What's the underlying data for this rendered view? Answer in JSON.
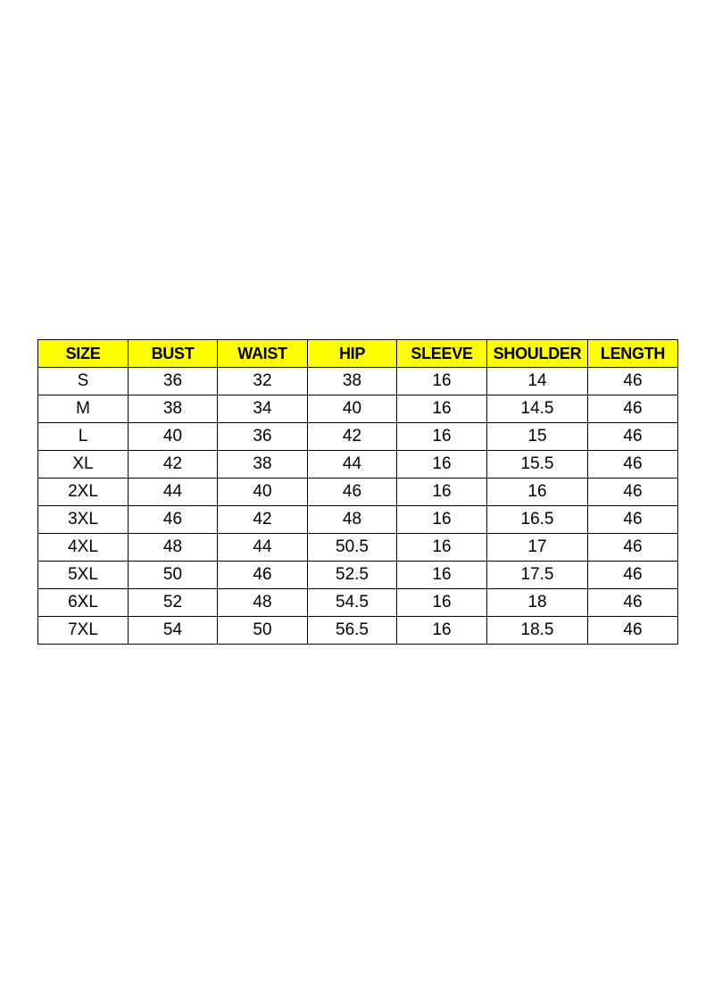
{
  "table": {
    "header_color": "#ffff00",
    "columns": [
      "SIZE",
      "BUST",
      "WAIST",
      "HIP",
      "SLEEVE",
      "SHOULDER",
      "LENGTH"
    ],
    "rows": [
      [
        "S",
        "36",
        "32",
        "38",
        "16",
        "14",
        "46"
      ],
      [
        "M",
        "38",
        "34",
        "40",
        "16",
        "14.5",
        "46"
      ],
      [
        "L",
        "40",
        "36",
        "42",
        "16",
        "15",
        "46"
      ],
      [
        "XL",
        "42",
        "38",
        "44",
        "16",
        "15.5",
        "46"
      ],
      [
        "2XL",
        "44",
        "40",
        "46",
        "16",
        "16",
        "46"
      ],
      [
        "3XL",
        "46",
        "42",
        "48",
        "16",
        "16.5",
        "46"
      ],
      [
        "4XL",
        "48",
        "44",
        "50.5",
        "16",
        "17",
        "46"
      ],
      [
        "5XL",
        "50",
        "46",
        "52.5",
        "16",
        "17.5",
        "46"
      ],
      [
        "6XL",
        "52",
        "48",
        "54.5",
        "16",
        "18",
        "46"
      ],
      [
        "7XL",
        "54",
        "50",
        "56.5",
        "16",
        "18.5",
        "46"
      ]
    ]
  }
}
